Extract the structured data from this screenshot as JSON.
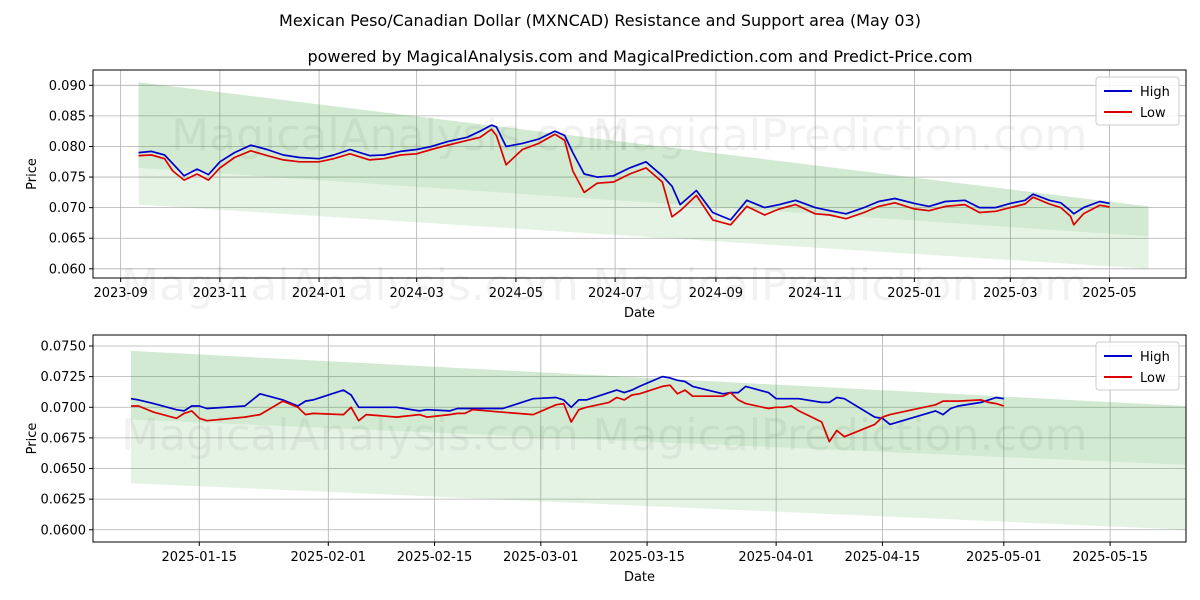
{
  "title": "Mexican Peso/Canadian Dollar (MXNCAD) Resistance and Support area (May 03)",
  "subtitle": "powered by MagicalAnalysis.com and MagicalPrediction.com and Predict-Price.com",
  "watermarks": [
    "MagicalAnalysis.com",
    "MagicalPrediction.com"
  ],
  "colors": {
    "high": "#0000cc",
    "low": "#dd0000",
    "band": "#2ca02c"
  },
  "chart_data": [
    {
      "type": "line",
      "xlabel": "Date",
      "ylabel": "Price",
      "grid": true,
      "legend_placement": "top-right",
      "ylim": [
        0.0585,
        0.0925
      ],
      "xlim": [
        "2023-08-15",
        "2025-06-17"
      ],
      "x_ticks": [
        "2023-09",
        "2023-11",
        "2024-01",
        "2024-03",
        "2024-05",
        "2024-07",
        "2024-09",
        "2024-11",
        "2025-01",
        "2025-03",
        "2025-05"
      ],
      "y_ticks": [
        "0.060",
        "0.065",
        "0.070",
        "0.075",
        "0.080",
        "0.085",
        "0.090"
      ],
      "bands": [
        {
          "x": [
            "2023-09-12",
            "2025-05-25"
          ],
          "upper": [
            0.0905,
            0.0702
          ],
          "lower": [
            0.0765,
            0.0653
          ]
        },
        {
          "x": [
            "2023-09-12",
            "2025-05-25"
          ],
          "upper": [
            0.0765,
            0.0653
          ],
          "lower": [
            0.0705,
            0.06
          ]
        }
      ],
      "series": [
        {
          "name": "High",
          "x": [
            "2023-09-12",
            "2023-09-20",
            "2023-09-28",
            "2023-10-03",
            "2023-10-10",
            "2023-10-18",
            "2023-10-25",
            "2023-11-01",
            "2023-11-10",
            "2023-11-20",
            "2023-11-30",
            "2023-12-10",
            "2023-12-20",
            "2024-01-01",
            "2024-01-10",
            "2024-01-20",
            "2024-02-01",
            "2024-02-10",
            "2024-02-20",
            "2024-03-01",
            "2024-03-10",
            "2024-03-20",
            "2024-04-01",
            "2024-04-09",
            "2024-04-16",
            "2024-04-19",
            "2024-04-25",
            "2024-05-05",
            "2024-05-15",
            "2024-05-25",
            "2024-05-31",
            "2024-06-05",
            "2024-06-12",
            "2024-06-20",
            "2024-06-30",
            "2024-07-10",
            "2024-07-20",
            "2024-07-30",
            "2024-08-05",
            "2024-08-10",
            "2024-08-20",
            "2024-08-30",
            "2024-09-10",
            "2024-09-20",
            "2024-10-01",
            "2024-10-10",
            "2024-10-20",
            "2024-11-01",
            "2024-11-10",
            "2024-11-20",
            "2024-12-01",
            "2024-12-10",
            "2024-12-20",
            "2025-01-01",
            "2025-01-10",
            "2025-01-20",
            "2025-02-01",
            "2025-02-10",
            "2025-02-20",
            "2025-03-01",
            "2025-03-10",
            "2025-03-15",
            "2025-03-25",
            "2025-04-01",
            "2025-04-07",
            "2025-04-09",
            "2025-04-15",
            "2025-04-25",
            "2025-05-01"
          ],
          "values": [
            0.079,
            0.0792,
            0.0786,
            0.0772,
            0.0752,
            0.0763,
            0.0754,
            0.0775,
            0.079,
            0.0802,
            0.0795,
            0.0786,
            0.0782,
            0.078,
            0.0786,
            0.0795,
            0.0785,
            0.0786,
            0.0792,
            0.0795,
            0.08,
            0.0808,
            0.0815,
            0.0825,
            0.0835,
            0.0832,
            0.08,
            0.0805,
            0.0812,
            0.0825,
            0.0818,
            0.079,
            0.0755,
            0.075,
            0.0752,
            0.0765,
            0.0775,
            0.0752,
            0.0735,
            0.0705,
            0.0728,
            0.0692,
            0.068,
            0.0712,
            0.07,
            0.0705,
            0.0712,
            0.07,
            0.0695,
            0.069,
            0.07,
            0.071,
            0.0715,
            0.0707,
            0.0702,
            0.071,
            0.0712,
            0.07,
            0.07,
            0.0707,
            0.0712,
            0.0722,
            0.0712,
            0.0708,
            0.0695,
            0.069,
            0.07,
            0.071,
            0.0707
          ]
        },
        {
          "name": "Low",
          "x": [
            "2023-09-12",
            "2023-09-20",
            "2023-09-28",
            "2023-10-03",
            "2023-10-10",
            "2023-10-18",
            "2023-10-25",
            "2023-11-01",
            "2023-11-10",
            "2023-11-20",
            "2023-11-30",
            "2023-12-10",
            "2023-12-20",
            "2024-01-01",
            "2024-01-10",
            "2024-01-20",
            "2024-02-01",
            "2024-02-10",
            "2024-02-20",
            "2024-03-01",
            "2024-03-10",
            "2024-03-20",
            "2024-04-01",
            "2024-04-09",
            "2024-04-16",
            "2024-04-19",
            "2024-04-25",
            "2024-05-05",
            "2024-05-15",
            "2024-05-25",
            "2024-05-31",
            "2024-06-05",
            "2024-06-12",
            "2024-06-20",
            "2024-06-30",
            "2024-07-10",
            "2024-07-20",
            "2024-07-30",
            "2024-08-05",
            "2024-08-10",
            "2024-08-20",
            "2024-08-30",
            "2024-09-10",
            "2024-09-20",
            "2024-10-01",
            "2024-10-10",
            "2024-10-20",
            "2024-11-01",
            "2024-11-10",
            "2024-11-20",
            "2024-12-01",
            "2024-12-10",
            "2024-12-20",
            "2025-01-01",
            "2025-01-10",
            "2025-01-20",
            "2025-02-01",
            "2025-02-10",
            "2025-02-20",
            "2025-03-01",
            "2025-03-10",
            "2025-03-15",
            "2025-03-25",
            "2025-04-01",
            "2025-04-07",
            "2025-04-09",
            "2025-04-15",
            "2025-04-25",
            "2025-05-01"
          ],
          "values": [
            0.0785,
            0.0786,
            0.078,
            0.076,
            0.0745,
            0.0755,
            0.0745,
            0.0765,
            0.0782,
            0.0793,
            0.0785,
            0.0778,
            0.0775,
            0.0775,
            0.078,
            0.0788,
            0.0778,
            0.078,
            0.0786,
            0.0788,
            0.0795,
            0.0802,
            0.081,
            0.0815,
            0.0828,
            0.0818,
            0.077,
            0.0795,
            0.0805,
            0.082,
            0.081,
            0.076,
            0.0725,
            0.074,
            0.0742,
            0.0755,
            0.0765,
            0.0742,
            0.0685,
            0.0695,
            0.072,
            0.068,
            0.0672,
            0.0702,
            0.0688,
            0.0698,
            0.0705,
            0.069,
            0.0688,
            0.0682,
            0.0692,
            0.0702,
            0.0708,
            0.0698,
            0.0695,
            0.0702,
            0.0705,
            0.0692,
            0.0694,
            0.07,
            0.0706,
            0.0717,
            0.0706,
            0.07,
            0.0686,
            0.0672,
            0.069,
            0.0704,
            0.0701
          ]
        }
      ]
    },
    {
      "type": "line",
      "xlabel": "Date",
      "ylabel": "Price",
      "grid": true,
      "legend_placement": "top-right",
      "ylim": [
        0.059,
        0.0759
      ],
      "xlim": [
        "2025-01-01",
        "2025-05-25"
      ],
      "x_ticks": [
        "2025-01-15",
        "2025-02-01",
        "2025-02-15",
        "2025-03-01",
        "2025-03-15",
        "2025-04-01",
        "2025-04-15",
        "2025-05-01",
        "2025-05-15"
      ],
      "y_ticks": [
        "0.0600",
        "0.0625",
        "0.0650",
        "0.0675",
        "0.0700",
        "0.0725",
        "0.0750"
      ],
      "bands": [
        {
          "x": [
            "2025-01-06",
            "2025-05-25"
          ],
          "upper": [
            0.0746,
            0.0701
          ],
          "lower": [
            0.069,
            0.0653
          ]
        },
        {
          "x": [
            "2025-01-06",
            "2025-05-25"
          ],
          "upper": [
            0.069,
            0.0653
          ],
          "lower": [
            0.0638,
            0.06
          ]
        }
      ],
      "series": [
        {
          "name": "High",
          "x": [
            "2025-01-06",
            "2025-01-07",
            "2025-01-09",
            "2025-01-12",
            "2025-01-13",
            "2025-01-14",
            "2025-01-15",
            "2025-01-16",
            "2025-01-21",
            "2025-01-23",
            "2025-01-26",
            "2025-01-28",
            "2025-01-29",
            "2025-01-30",
            "2025-02-03",
            "2025-02-04",
            "2025-02-05",
            "2025-02-06",
            "2025-02-10",
            "2025-02-13",
            "2025-02-14",
            "2025-02-17",
            "2025-02-18",
            "2025-02-19",
            "2025-02-20",
            "2025-02-24",
            "2025-02-28",
            "2025-03-03",
            "2025-03-04",
            "2025-03-05",
            "2025-03-06",
            "2025-03-07",
            "2025-03-10",
            "2025-03-11",
            "2025-03-12",
            "2025-03-13",
            "2025-03-14",
            "2025-03-17",
            "2025-03-18",
            "2025-03-19",
            "2025-03-20",
            "2025-03-21",
            "2025-03-25",
            "2025-03-26",
            "2025-03-27",
            "2025-03-28",
            "2025-03-31",
            "2025-04-01",
            "2025-04-02",
            "2025-04-03",
            "2025-04-04",
            "2025-04-07",
            "2025-04-08",
            "2025-04-09",
            "2025-04-10",
            "2025-04-14",
            "2025-04-15",
            "2025-04-16",
            "2025-04-22",
            "2025-04-23",
            "2025-04-24",
            "2025-04-25",
            "2025-04-28",
            "2025-04-29",
            "2025-04-30",
            "2025-05-01"
          ],
          "values": [
            0.0707,
            0.0706,
            0.0703,
            0.0698,
            0.0697,
            0.0701,
            0.0701,
            0.0699,
            0.0701,
            0.0711,
            0.0706,
            0.0701,
            0.0705,
            0.0706,
            0.0714,
            0.071,
            0.07,
            0.07,
            0.07,
            0.0697,
            0.0698,
            0.0697,
            0.0699,
            0.0699,
            0.0699,
            0.0699,
            0.0707,
            0.0708,
            0.0706,
            0.07,
            0.0706,
            0.0706,
            0.0712,
            0.0714,
            0.0712,
            0.0714,
            0.0717,
            0.0725,
            0.0724,
            0.0722,
            0.0721,
            0.0717,
            0.0711,
            0.0712,
            0.0712,
            0.0717,
            0.0712,
            0.0707,
            0.0707,
            0.0707,
            0.0707,
            0.0704,
            0.0704,
            0.0708,
            0.0707,
            0.0692,
            0.0691,
            0.0686,
            0.0697,
            0.0694,
            0.0699,
            0.0701,
            0.0704,
            0.0706,
            0.0708,
            0.0707
          ]
        },
        {
          "name": "Low",
          "x": [
            "2025-01-06",
            "2025-01-07",
            "2025-01-09",
            "2025-01-12",
            "2025-01-13",
            "2025-01-14",
            "2025-01-15",
            "2025-01-16",
            "2025-01-21",
            "2025-01-23",
            "2025-01-26",
            "2025-01-28",
            "2025-01-29",
            "2025-01-30",
            "2025-02-03",
            "2025-02-04",
            "2025-02-05",
            "2025-02-06",
            "2025-02-10",
            "2025-02-13",
            "2025-02-14",
            "2025-02-17",
            "2025-02-18",
            "2025-02-19",
            "2025-02-20",
            "2025-02-24",
            "2025-02-28",
            "2025-03-03",
            "2025-03-04",
            "2025-03-05",
            "2025-03-06",
            "2025-03-07",
            "2025-03-10",
            "2025-03-11",
            "2025-03-12",
            "2025-03-13",
            "2025-03-14",
            "2025-03-17",
            "2025-03-18",
            "2025-03-19",
            "2025-03-20",
            "2025-03-21",
            "2025-03-25",
            "2025-03-26",
            "2025-03-27",
            "2025-03-28",
            "2025-03-31",
            "2025-04-01",
            "2025-04-02",
            "2025-04-03",
            "2025-04-04",
            "2025-04-07",
            "2025-04-08",
            "2025-04-09",
            "2025-04-10",
            "2025-04-14",
            "2025-04-15",
            "2025-04-16",
            "2025-04-22",
            "2025-04-23",
            "2025-04-24",
            "2025-04-25",
            "2025-04-28",
            "2025-04-29",
            "2025-04-30",
            "2025-05-01"
          ],
          "values": [
            0.0701,
            0.0701,
            0.0696,
            0.0691,
            0.0695,
            0.0697,
            0.0691,
            0.0689,
            0.0692,
            0.0694,
            0.0705,
            0.07,
            0.0694,
            0.0695,
            0.0694,
            0.07,
            0.0689,
            0.0694,
            0.0692,
            0.0694,
            0.0692,
            0.0694,
            0.0695,
            0.0695,
            0.0698,
            0.0696,
            0.0694,
            0.0702,
            0.0703,
            0.0688,
            0.0698,
            0.07,
            0.0704,
            0.0708,
            0.0706,
            0.071,
            0.0711,
            0.0717,
            0.0718,
            0.0711,
            0.0714,
            0.0709,
            0.0709,
            0.0712,
            0.0706,
            0.0703,
            0.0699,
            0.07,
            0.07,
            0.0701,
            0.0697,
            0.0688,
            0.0672,
            0.0681,
            0.0676,
            0.0686,
            0.0692,
            0.0694,
            0.0702,
            0.0705,
            0.0705,
            0.0705,
            0.0706,
            0.0704,
            0.0703,
            0.0701
          ]
        }
      ]
    }
  ]
}
